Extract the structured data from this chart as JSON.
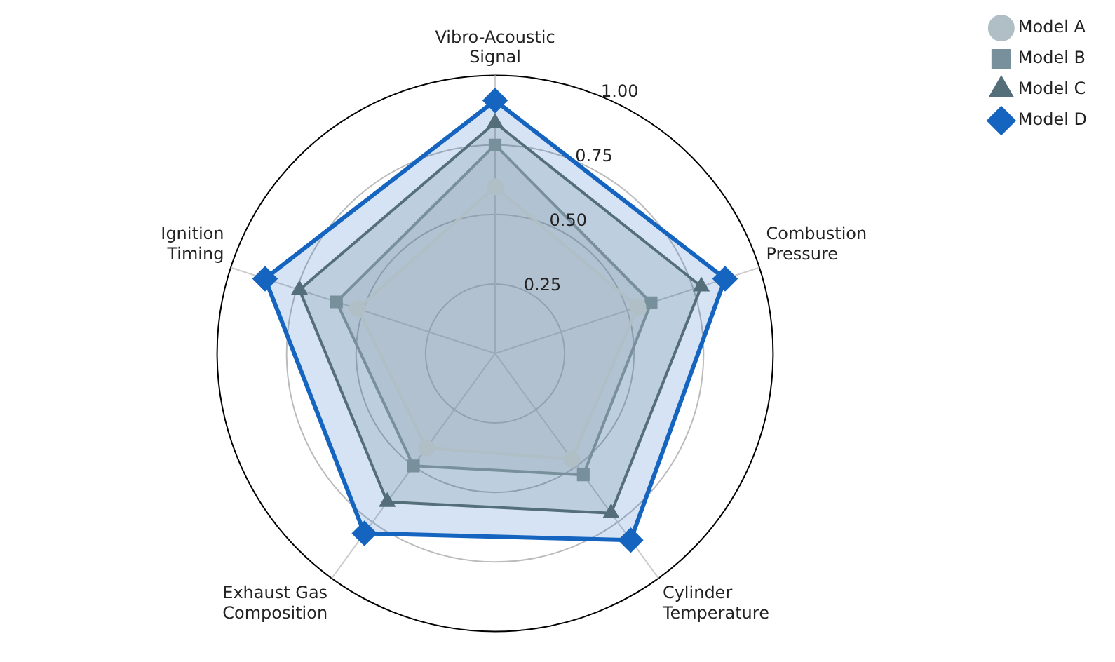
{
  "chart_data": {
    "type": "radar",
    "categories": [
      "Vibro-Acoustic Signal",
      "Combustion Pressure",
      "Cylinder Temperature",
      "Exhaust Gas Composition",
      "Ignition Timing"
    ],
    "series": [
      {
        "name": "Model A",
        "color": "#b0bec5",
        "marker": "circle",
        "values": [
          0.6,
          0.54,
          0.47,
          0.42,
          0.52
        ]
      },
      {
        "name": "Model B",
        "color": "#78909c",
        "marker": "square",
        "values": [
          0.75,
          0.59,
          0.54,
          0.5,
          0.6
        ]
      },
      {
        "name": "Model C",
        "color": "#546e7a",
        "marker": "triangle",
        "values": [
          0.83,
          0.78,
          0.71,
          0.66,
          0.74
        ]
      },
      {
        "name": "Model D",
        "color": "#1565c0",
        "marker": "diamond",
        "values": [
          0.91,
          0.87,
          0.83,
          0.8,
          0.87
        ]
      }
    ],
    "ylim": [
      0,
      1
    ],
    "yticks": [
      {
        "value": 0.25,
        "label": "0.25"
      },
      {
        "value": 0.5,
        "label": "0.50"
      },
      {
        "value": 0.75,
        "label": "0.75"
      },
      {
        "value": 1,
        "label": "1.00"
      }
    ],
    "grid": true,
    "legend": "top right",
    "line_style": "solid"
  }
}
